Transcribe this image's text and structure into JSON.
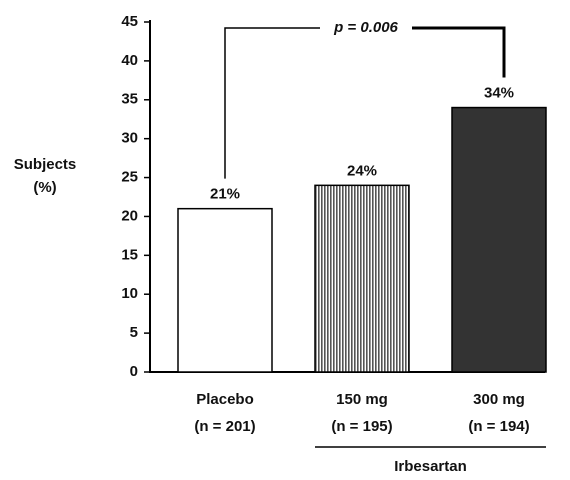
{
  "chart_data": {
    "type": "bar",
    "ylabel": [
      "Subjects",
      "(%)"
    ],
    "categories": [
      "Placebo",
      "150 mg",
      "300 mg"
    ],
    "category_notes": [
      "(n = 201)",
      "(n = 195)",
      "(n = 194)"
    ],
    "values": [
      21,
      24,
      34
    ],
    "value_labels": [
      "21%",
      "24%",
      "34%"
    ],
    "colors": [
      "#ffffff",
      "#8a8a8a",
      "#333333"
    ],
    "hatch": [
      null,
      "vertical",
      null
    ],
    "ylim": [
      0,
      45
    ],
    "yticks": [
      0,
      5,
      10,
      15,
      20,
      25,
      30,
      35,
      40,
      45
    ],
    "annotation": "p = 0.006",
    "group_label": "Irbesartan"
  }
}
